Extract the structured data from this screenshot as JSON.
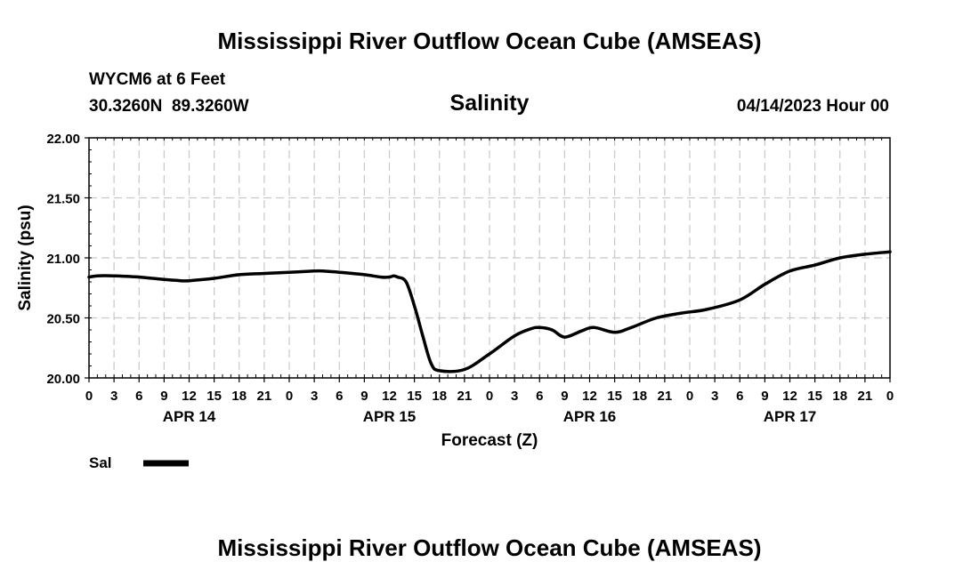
{
  "header": {
    "title": "Mississippi River Outflow Ocean Cube (AMSEAS)",
    "station": "WYCM6 at 6 Feet",
    "coords": "30.3260N  89.3260W",
    "subtitle": "Salinity",
    "datetime": "04/14/2023 Hour 00"
  },
  "footer": {
    "title": "Mississippi River Outflow Ocean Cube (AMSEAS)"
  },
  "colors": {
    "line": "#000000",
    "grid": "#c8c8c8",
    "background": "#ffffff"
  },
  "chart_data": {
    "type": "line",
    "title": "Salinity",
    "xlabel": "Forecast (Z)",
    "ylabel": "Salinity (psu)",
    "xlim": [
      0,
      96
    ],
    "ylim": [
      20.0,
      22.0
    ],
    "y_ticks": [
      "20.00",
      "20.50",
      "21.00",
      "21.50",
      "22.00"
    ],
    "y_tick_values": [
      20.0,
      20.5,
      21.0,
      21.5,
      22.0
    ],
    "x_tick_labels": [
      "0",
      "3",
      "6",
      "9",
      "12",
      "15",
      "18",
      "21",
      "0",
      "3",
      "6",
      "9",
      "12",
      "15",
      "18",
      "21",
      "0",
      "3",
      "6",
      "9",
      "12",
      "15",
      "18",
      "21",
      "0",
      "3",
      "6",
      "9",
      "12",
      "15",
      "18",
      "21",
      "0"
    ],
    "x_tick_step_hours": 3,
    "day_labels": [
      {
        "label": "APR 14",
        "hour": 12
      },
      {
        "label": "APR 15",
        "hour": 36
      },
      {
        "label": "APR 16",
        "hour": 60
      },
      {
        "label": "APR 17",
        "hour": 84
      }
    ],
    "grid": true,
    "legend": {
      "position": "bottom-left",
      "entries": [
        {
          "label": "Sal"
        }
      ]
    },
    "series": [
      {
        "name": "Sal",
        "x": [
          0,
          1,
          3,
          6,
          9,
          11,
          12,
          15,
          18,
          21,
          24,
          27,
          28,
          30,
          33,
          35,
          36,
          36.5,
          37,
          38,
          39,
          40,
          41,
          42,
          45,
          48,
          51,
          53,
          54,
          55.5,
          57,
          59,
          60.5,
          63,
          65,
          68,
          71,
          74,
          78,
          81,
          84,
          87,
          90,
          93,
          96
        ],
        "y": [
          20.84,
          20.85,
          20.85,
          20.84,
          20.82,
          20.81,
          20.81,
          20.83,
          20.86,
          20.87,
          20.88,
          20.89,
          20.89,
          20.88,
          20.86,
          20.84,
          20.84,
          20.85,
          20.84,
          20.8,
          20.6,
          20.35,
          20.12,
          20.06,
          20.07,
          20.2,
          20.35,
          20.41,
          20.42,
          20.4,
          20.34,
          20.39,
          20.42,
          20.38,
          20.42,
          20.5,
          20.54,
          20.57,
          20.65,
          20.78,
          20.89,
          20.94,
          21.0,
          21.03,
          21.05
        ]
      }
    ]
  }
}
